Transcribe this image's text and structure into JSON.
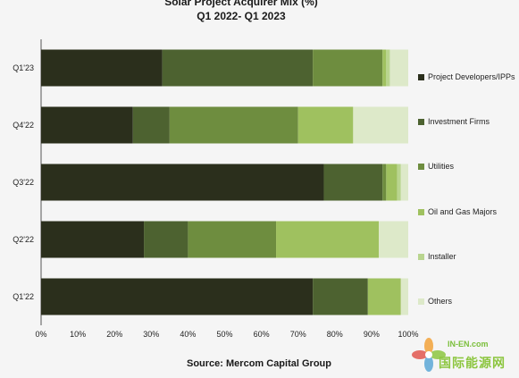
{
  "colors": {
    "series": [
      "#2b2f1c",
      "#4d6230",
      "#6e8d3f",
      "#9fc15f",
      "#b9d58f",
      "#dde9c9"
    ],
    "axis": "#555555",
    "grid": "#e2e2e2",
    "watermark": "#8cc63f"
  },
  "watermark": {
    "line1": "IN-EN.com",
    "line2": "国际能源网",
    "icon": "flower-logo-icon"
  },
  "chart_data": {
    "type": "bar",
    "orientation": "horizontal",
    "stacked": true,
    "title": "Solar Project Acquirer Mix (%)",
    "subtitle": "Q1 2022- Q1 2023",
    "source": "Source: Mercom Capital Group",
    "categories": [
      "Q1'23",
      "Q4'22",
      "Q3'22",
      "Q2'22",
      "Q1'22"
    ],
    "x_ticks": [
      "0%",
      "10%",
      "20%",
      "30%",
      "40%",
      "50%",
      "60%",
      "70%",
      "80%",
      "90%",
      "100%"
    ],
    "xlim": [
      0,
      100
    ],
    "grid": false,
    "legend_position": "right",
    "series": [
      {
        "name": "Project Developers/IPPs",
        "values": [
          33,
          25,
          77,
          28,
          74
        ]
      },
      {
        "name": "Investment Firms",
        "values": [
          41,
          10,
          16,
          12,
          15
        ]
      },
      {
        "name": "Utilities",
        "values": [
          19,
          35,
          1,
          24,
          0
        ]
      },
      {
        "name": "Oil and Gas Majors",
        "values": [
          1,
          15,
          3,
          28,
          9
        ]
      },
      {
        "name": "Installer",
        "values": [
          1,
          0,
          1,
          0,
          0
        ]
      },
      {
        "name": "Others",
        "values": [
          5,
          15,
          2,
          8,
          2
        ]
      }
    ]
  }
}
